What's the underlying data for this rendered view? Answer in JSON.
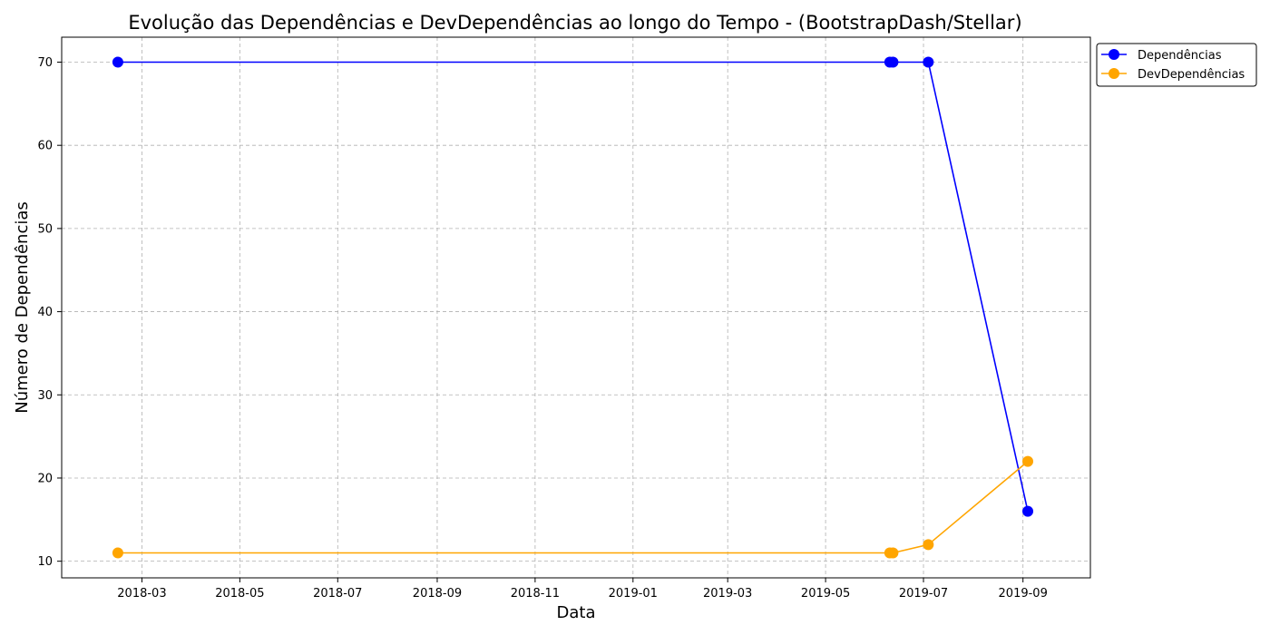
{
  "chart_data": {
    "type": "line",
    "title": "Evolução das Dependências e DevDependências ao longo do Tempo - (BootstrapDash/Stellar)",
    "xlabel": "Data",
    "ylabel": "Número de Dependências",
    "x": [
      "2018-02-14",
      "2019-06-10",
      "2019-06-12",
      "2019-07-04",
      "2019-09-04"
    ],
    "xlim": [
      "2018-01-10",
      "2019-10-13"
    ],
    "ylim": [
      8,
      73
    ],
    "xticks": [
      "2018-03",
      "2018-05",
      "2018-07",
      "2018-09",
      "2018-11",
      "2019-01",
      "2019-03",
      "2019-05",
      "2019-07",
      "2019-09"
    ],
    "xtick_dates": [
      "2018-03-01",
      "2018-05-01",
      "2018-07-01",
      "2018-09-01",
      "2018-11-01",
      "2019-01-01",
      "2019-03-01",
      "2019-05-01",
      "2019-07-01",
      "2019-09-01"
    ],
    "yticks": [
      10,
      20,
      30,
      40,
      50,
      60,
      70
    ],
    "grid": true,
    "legend_position": "outside-top-right",
    "series": [
      {
        "name": "Dependências",
        "color": "#0000ff",
        "values": [
          70,
          70,
          70,
          70,
          16
        ]
      },
      {
        "name": "DevDependências",
        "color": "#ffa500",
        "values": [
          11,
          11,
          11,
          12,
          22
        ]
      }
    ]
  }
}
